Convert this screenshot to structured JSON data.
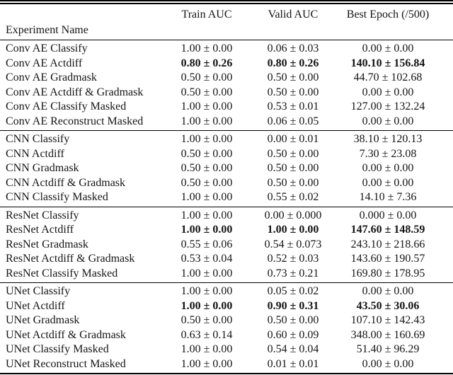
{
  "table": {
    "header": {
      "experiment_name": "Experiment Name",
      "train_auc": "Train AUC",
      "valid_auc": "Valid AUC",
      "best_epoch": "Best Epoch (/500)"
    },
    "sections": [
      {
        "rows": [
          {
            "name": "Conv AE Classify",
            "train": "1.00 ± 0.00",
            "valid": "0.06 ± 0.03",
            "epoch": "0.00 ± 0.00",
            "bold": false
          },
          {
            "name": "Conv AE Actdiff",
            "train": "0.80 ± 0.26",
            "valid": "0.80 ± 0.26",
            "epoch": "140.10 ± 156.84",
            "bold": true
          },
          {
            "name": "Conv AE Gradmask",
            "train": "0.50 ± 0.00",
            "valid": "0.50 ± 0.00",
            "epoch": "44.70 ± 102.68",
            "bold": false
          },
          {
            "name": "Conv AE Actdiff & Gradmask",
            "train": "0.50 ± 0.00",
            "valid": "0.50 ± 0.00",
            "epoch": "0.00 ± 0.00",
            "bold": false
          },
          {
            "name": "Conv AE Classify Masked",
            "train": "1.00 ± 0.00",
            "valid": "0.53 ± 0.01",
            "epoch": "127.00 ± 132.24",
            "bold": false
          },
          {
            "name": "Conv AE Reconstruct Masked",
            "train": "1.00 ± 0.00",
            "valid": "0.06 ± 0.05",
            "epoch": "0.00 ± 0.00",
            "bold": false
          }
        ]
      },
      {
        "rows": [
          {
            "name": "CNN Classify",
            "train": "1.00 ± 0.00",
            "valid": "0.00 ± 0.01",
            "epoch": "38.10 ± 120.13",
            "bold": false
          },
          {
            "name": "CNN Actdiff",
            "train": "0.50 ± 0.00",
            "valid": "0.50 ± 0.00",
            "epoch": "7.30 ± 23.08",
            "bold": false
          },
          {
            "name": "CNN Gradmask",
            "train": "0.50 ± 0.00",
            "valid": "0.50 ± 0.00",
            "epoch": "0.00 ± 0.00",
            "bold": false
          },
          {
            "name": "CNN Actdiff & Gradmask",
            "train": "0.50 ± 0.00",
            "valid": "0.50 ± 0.00",
            "epoch": "0.00 ± 0.00",
            "bold": false
          },
          {
            "name": "CNN Classify Masked",
            "train": "1.00 ± 0.00",
            "valid": "0.55 ± 0.02",
            "epoch": "14.10 ± 7.36",
            "bold": false
          }
        ]
      },
      {
        "rows": [
          {
            "name": "ResNet Classify",
            "train": "1.00 ± 0.00",
            "valid": "0.00 ± 0.000",
            "epoch": "0.000 ± 0.00",
            "bold": false
          },
          {
            "name": "ResNet Actdiff",
            "train": "1.00 ± 0.00",
            "valid": "1.00 ± 0.00",
            "epoch": "147.60 ± 148.59",
            "bold": true
          },
          {
            "name": "ResNet Gradmask",
            "train": "0.55 ± 0.06",
            "valid": "0.54 ± 0.073",
            "epoch": "243.10 ± 218.66",
            "bold": false
          },
          {
            "name": "ResNet Actdiff & Gradmask",
            "train": "0.53 ± 0.04",
            "valid": "0.52 ± 0.03",
            "epoch": "143.60 ± 190.57",
            "bold": false
          },
          {
            "name": "ResNet Classify Masked",
            "train": "1.00 ± 0.00",
            "valid": "0.73 ± 0.21",
            "epoch": "169.80 ± 178.95",
            "bold": false
          }
        ]
      },
      {
        "rows": [
          {
            "name": "UNet Classify",
            "train": "1.00 ± 0.00",
            "valid": "0.05 ± 0.02",
            "epoch": "0.00 ± 0.00",
            "bold": false
          },
          {
            "name": "UNet Actdiff",
            "train": "1.00 ± 0.00",
            "valid": "0.90 ± 0.31",
            "epoch": "43.50 ± 30.06",
            "bold": true
          },
          {
            "name": "UNet Gradmask",
            "train": "0.50 ± 0.00",
            "valid": "0.50 ± 0.00",
            "epoch": "107.10 ± 142.43",
            "bold": false
          },
          {
            "name": "UNet Actdiff & Gradmask",
            "train": "0.63 ± 0.14",
            "valid": "0.60 ± 0.09",
            "epoch": "348.00 ± 160.69",
            "bold": false
          },
          {
            "name": "UNet Classify Masked",
            "train": "1.00 ± 0.00",
            "valid": "0.54 ± 0.04",
            "epoch": "51.40 ± 96.29",
            "bold": false
          },
          {
            "name": "UNet Reconstruct Masked",
            "train": "1.00 ± 0.00",
            "valid": "0.01 ± 0.01",
            "epoch": "0.00 ± 0.00",
            "bold": false
          }
        ]
      }
    ]
  }
}
